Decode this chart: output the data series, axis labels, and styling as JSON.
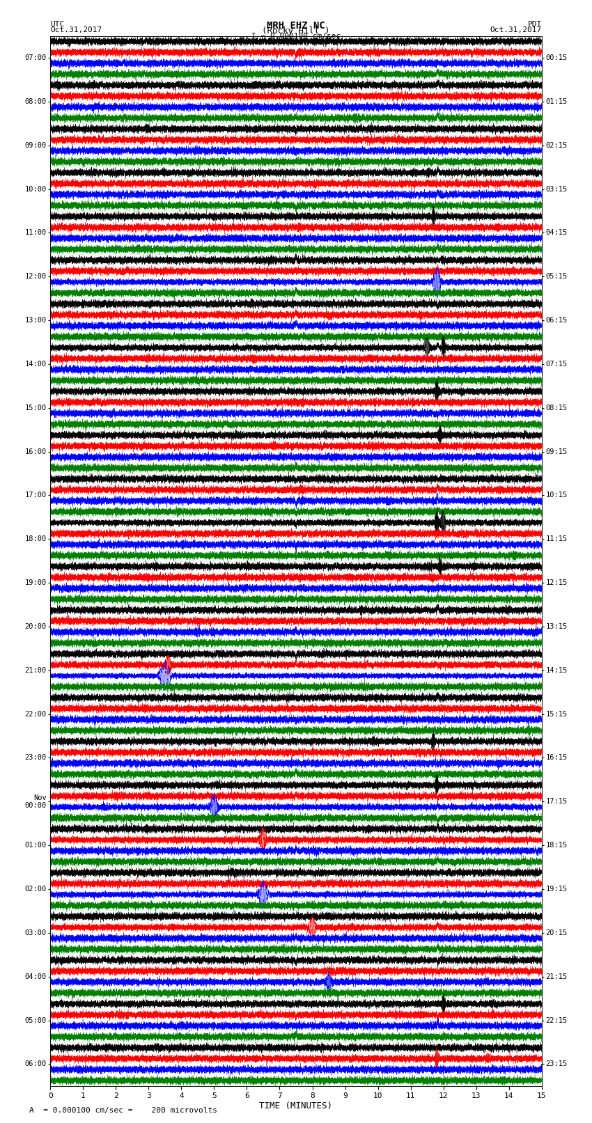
{
  "title_line1": "MRH EHZ NC",
  "title_line2": "(Rocky Hill )",
  "title_line3": "I = 0.000100 cm/sec",
  "left_header_line1": "UTC",
  "left_header_line2": "Oct.31,2017",
  "right_header_line1": "PDT",
  "right_header_line2": "Oct.31,2017",
  "xlabel": "TIME (MINUTES)",
  "footer": "A  = 0.000100 cm/sec =    200 microvolts",
  "utc_labels": [
    "07:00",
    "08:00",
    "09:00",
    "10:00",
    "11:00",
    "12:00",
    "13:00",
    "14:00",
    "15:00",
    "16:00",
    "17:00",
    "18:00",
    "19:00",
    "20:00",
    "21:00",
    "22:00",
    "23:00",
    "Nov\n00:00",
    "01:00",
    "02:00",
    "03:00",
    "04:00",
    "05:00",
    "06:00"
  ],
  "pdt_labels": [
    "00:15",
    "01:15",
    "02:15",
    "03:15",
    "04:15",
    "05:15",
    "06:15",
    "07:15",
    "08:15",
    "09:15",
    "10:15",
    "11:15",
    "12:15",
    "13:15",
    "14:15",
    "15:15",
    "16:15",
    "17:15",
    "18:15",
    "19:15",
    "20:15",
    "21:15",
    "22:15",
    "23:15"
  ],
  "n_rows": 24,
  "traces_per_row": 4,
  "trace_colors": [
    "black",
    "red",
    "blue",
    "green"
  ],
  "x_ticks": [
    0,
    1,
    2,
    3,
    4,
    5,
    6,
    7,
    8,
    9,
    10,
    11,
    12,
    13,
    14,
    15
  ],
  "x_lim": [
    0,
    15
  ],
  "background_color": "white",
  "noise_seed": 12345
}
